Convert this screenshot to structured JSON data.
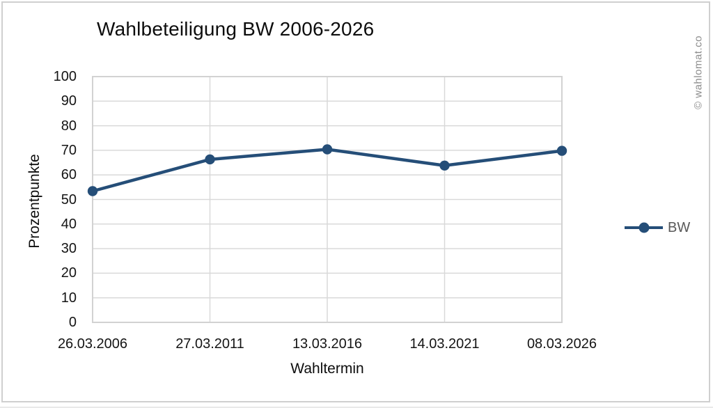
{
  "chart_data": {
    "type": "line",
    "title": "Wahlbeteiligung BW 2006-2026",
    "xlabel": "Wahltermin",
    "ylabel": "Prozentpunkte",
    "categories": [
      "26.03.2006",
      "27.03.2011",
      "13.03.2016",
      "14.03.2021",
      "08.03.2026"
    ],
    "series": [
      {
        "name": "BW",
        "values": [
          53.4,
          66.3,
          70.4,
          63.8,
          69.8
        ]
      }
    ],
    "ylim": [
      0,
      100
    ],
    "yticks": [
      0,
      10,
      20,
      30,
      40,
      50,
      60,
      70,
      80,
      90,
      100
    ],
    "grid": true,
    "legend_position": "right"
  },
  "watermark": {
    "text": "© wahlomat.co"
  },
  "colors": {
    "line": "#254e78",
    "marker": "#254e78",
    "grid": "#d9d9d9",
    "plot_border": "#d2d2d2",
    "axis_text": "#141414",
    "title_text": "#0d0d0d",
    "legend_text": "#595959",
    "watermark_text": "#8c8c8c",
    "frame_border": "#cfcfcf",
    "background": "#ffffff"
  }
}
